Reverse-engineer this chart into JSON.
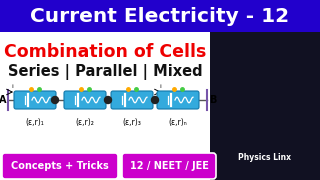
{
  "bg_color": "#ffffff",
  "title_bg": "#2200cc",
  "title_text": "Current Electricity - 12",
  "title_color": "#ffffff",
  "subtitle_text": "Combination of Cells",
  "subtitle_color": "#ee0000",
  "series_text": "Series | Parallel | Mixed",
  "series_color": "#111111",
  "cell_color": "#33aadd",
  "cell_color_dark": "#1177aa",
  "cell_labels": [
    "(ε,r)₁",
    "(ε,r)₂",
    "(ε,r)₃",
    "(ε,r)ₙ"
  ],
  "bottom_left_text": "Concepts + Tricks",
  "bottom_right_text": "12 / NEET / JEE",
  "bottom_bg": "#cc00cc",
  "bottom_text_color": "#ffffff",
  "wire_color": "#555555",
  "photo_bg": "#111122",
  "dot_color1": "#ffaa00",
  "dot_color2": "#44cc44",
  "circuit_line_color": "#7755aa",
  "connector_color": "#555555"
}
